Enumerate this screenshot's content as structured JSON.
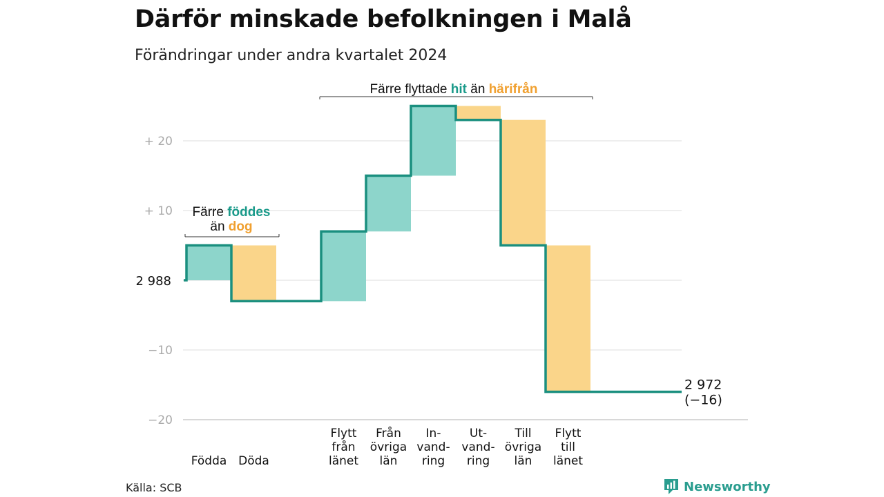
{
  "title": "Därför minskade befolkningen i Malå",
  "subtitle": "Förändringar under andra kvartalet 2024",
  "source": "Källa: SCB",
  "brand": "Newsworthy",
  "colors": {
    "increase": "#8dd5cb",
    "decrease": "#fad58a",
    "line": "#1a8f7f",
    "teal_text": "#1a9a8a",
    "orange_text": "#f0a030",
    "grid": "#dddddd",
    "tick": "#aaaaaa"
  },
  "annotations": {
    "births_deaths": {
      "line1_prefix": "Färre ",
      "line1_em": "föddes",
      "line2_prefix": "än ",
      "line2_em": "dog"
    },
    "migration": {
      "prefix": "Färre flyttade ",
      "em1": "hit",
      "middle": " än ",
      "em2": "härifrån"
    }
  },
  "chart_data": {
    "type": "waterfall",
    "start_value": 2988,
    "start_label": "2 988",
    "end_label_line1": "2 972",
    "end_label_line2": "(−16)",
    "y_ticks": [
      {
        "value": 20,
        "label": "+  20"
      },
      {
        "value": 10,
        "label": "+  10"
      },
      {
        "value": 0,
        "label": ""
      },
      {
        "value": -10,
        "label": "−10"
      },
      {
        "value": -20,
        "label": "−20"
      }
    ],
    "ylim": [
      -20,
      25
    ],
    "steps": [
      {
        "label": [
          "Födda"
        ],
        "delta": 5,
        "kind": "increase"
      },
      {
        "label": [
          "Döda"
        ],
        "delta": -8,
        "kind": "decrease"
      },
      {
        "label": [
          ""
        ],
        "delta": 0,
        "kind": "none"
      },
      {
        "label": [
          "Flytt",
          "från",
          "länet"
        ],
        "delta": 10,
        "kind": "increase"
      },
      {
        "label": [
          "Från",
          "övriga",
          "län"
        ],
        "delta": 8,
        "kind": "increase"
      },
      {
        "label": [
          "In-",
          "vand-",
          "ring"
        ],
        "delta": 10,
        "kind": "increase"
      },
      {
        "label": [
          "Ut-",
          "vand-",
          "ring"
        ],
        "delta": -2,
        "kind": "decrease"
      },
      {
        "label": [
          "Till",
          "övriga",
          "län"
        ],
        "delta": -18,
        "kind": "decrease"
      },
      {
        "label": [
          "Flytt",
          "till",
          "länet"
        ],
        "delta": -21,
        "kind": "decrease"
      }
    ]
  }
}
